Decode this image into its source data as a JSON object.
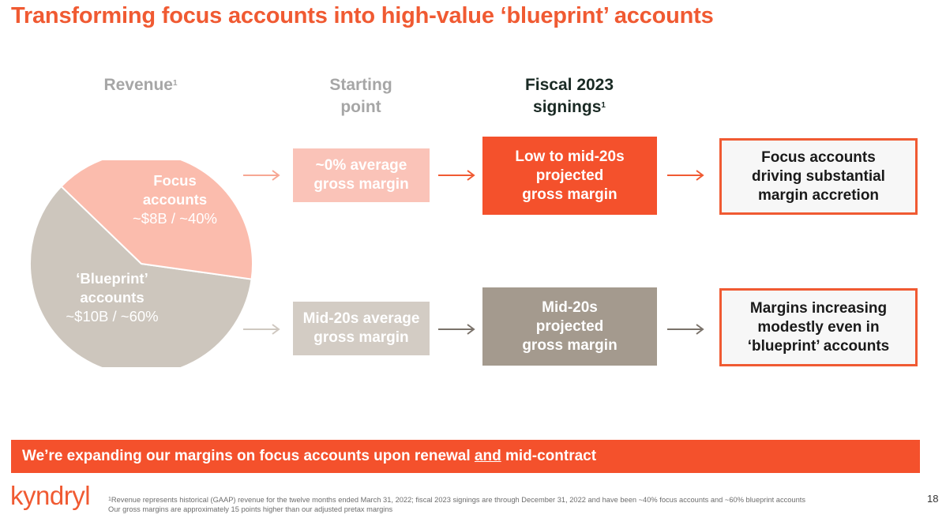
{
  "title": "Transforming focus accounts into high-value ‘blueprint’ accounts",
  "columns": {
    "revenue": {
      "label": "Revenue",
      "footnote_mark": "1"
    },
    "starting": {
      "line1": "Starting",
      "line2": "point"
    },
    "fiscal": {
      "line1": "Fiscal 2023",
      "line2": "signings",
      "footnote_mark": "1"
    }
  },
  "pie": {
    "segments": [
      {
        "line1": "Focus",
        "line2": "accounts",
        "value_text": "~$8B / ~40%",
        "share": 40,
        "color": "#fbbcad"
      },
      {
        "line1": "‘Blueprint’",
        "line2": "accounts",
        "value_text": "~$10B / ~60%",
        "share": 60,
        "color": "#cdc6bd"
      }
    ]
  },
  "rows": [
    {
      "start": {
        "line1": "~0% average",
        "line2": "gross margin"
      },
      "fiscal": {
        "line1": "Low to mid-20s",
        "line2": "projected",
        "line3": "gross margin"
      },
      "result": {
        "line1": "Focus accounts",
        "line2": "driving substantial",
        "line3": "margin accretion"
      }
    },
    {
      "start": {
        "line1": "Mid-20s average",
        "line2": "gross margin"
      },
      "fiscal": {
        "line1": "Mid-20s",
        "line2": "projected",
        "line3": "gross margin"
      },
      "result": {
        "line1": "Margins increasing",
        "line2": "modestly even in",
        "line3": "‘blueprint’ accounts"
      }
    }
  ],
  "colors": {
    "accent": "#f4512c",
    "light_accent": "#fac3b8",
    "taupe": "#a49a8e",
    "light_taupe": "#d3ccc4"
  },
  "banner": {
    "before": "We’re expanding our margins on focus accounts upon renewal ",
    "underlined": "and",
    "after": " mid-contract"
  },
  "logo": "kyndryl",
  "footnote": {
    "mark": "1",
    "line1": "Revenue represents historical (GAAP) revenue for the twelve months ended March 31, 2022; fiscal 2023 signings are through December 31, 2022 and have been ~40% focus accounts and ~60% blueprint accounts",
    "line2": "Our gross margins are approximately 15 points higher than our adjusted pretax margins"
  },
  "page_number": "18"
}
